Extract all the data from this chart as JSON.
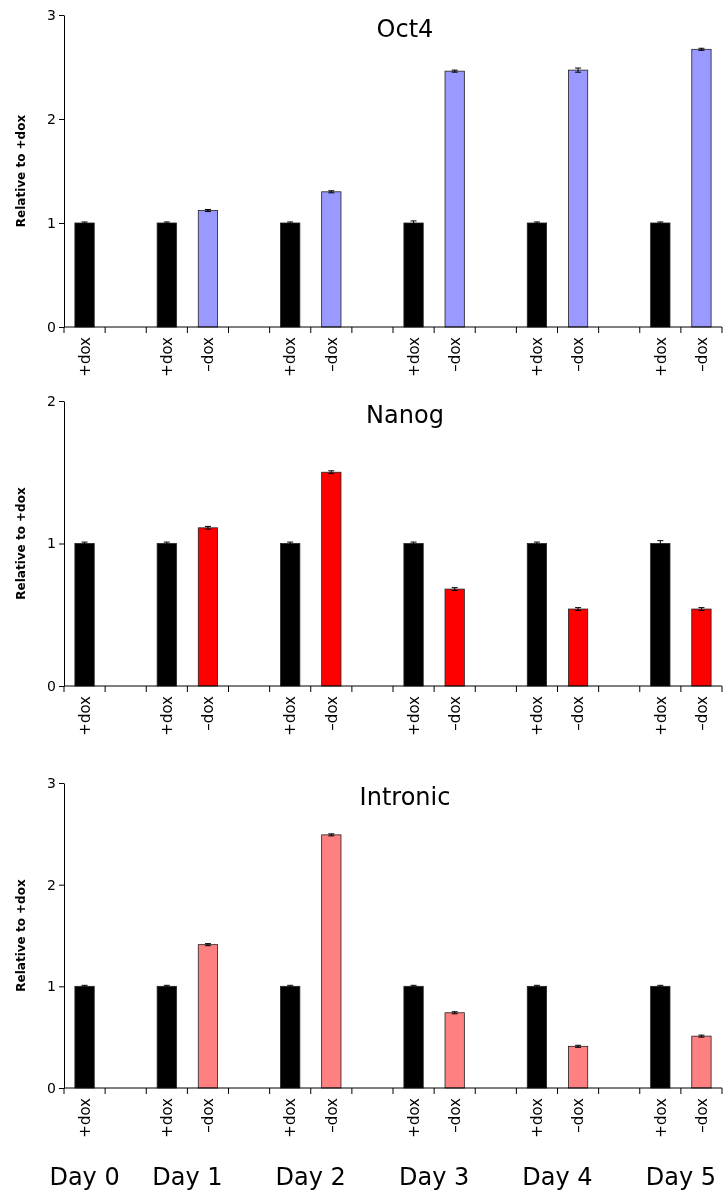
{
  "chart_data": [
    {
      "type": "bar",
      "title": "Oct4",
      "ylabel": "Relative to +dox",
      "categories": [
        "+dox",
        null,
        "+dox",
        "–dox",
        null,
        "+dox",
        "–dox",
        null,
        "+dox",
        "–dox",
        null,
        "+dox",
        "–dox",
        null,
        "+dox",
        "–dox"
      ],
      "values": [
        1,
        null,
        1,
        1.12,
        null,
        1,
        1.3,
        null,
        1,
        2.46,
        null,
        1,
        2.47,
        null,
        1,
        2.67
      ],
      "errors": [
        0.01,
        null,
        0.01,
        0.01,
        null,
        0.01,
        0.01,
        null,
        0.02,
        0.01,
        null,
        0.01,
        0.02,
        null,
        0.01,
        0.01
      ],
      "colors": [
        "#000000",
        null,
        "#000000",
        "#9999ff",
        null,
        "#000000",
        "#9999ff",
        null,
        "#000000",
        "#9999ff",
        null,
        "#000000",
        "#9999ff",
        null,
        "#000000",
        "#9999ff"
      ],
      "ylim": [
        0,
        3
      ],
      "yticks": [
        0,
        1,
        2,
        3
      ],
      "grid": false
    },
    {
      "type": "bar",
      "title": "Nanog",
      "ylabel": "Relative to +dox",
      "categories": [
        "+dox",
        null,
        "+dox",
        "–dox",
        null,
        "+dox",
        "–dox",
        null,
        "+dox",
        "–dox",
        null,
        "+dox",
        "–dox",
        null,
        "+dox",
        "–dox"
      ],
      "values": [
        1,
        null,
        1,
        1.11,
        null,
        1,
        1.5,
        null,
        1,
        0.68,
        null,
        1,
        0.54,
        null,
        1,
        0.54
      ],
      "errors": [
        0.01,
        null,
        0.01,
        0.01,
        null,
        0.01,
        0.01,
        null,
        0.01,
        0.01,
        null,
        0.01,
        0.01,
        null,
        0.02,
        0.01
      ],
      "colors": [
        "#000000",
        null,
        "#000000",
        "#ff0000",
        null,
        "#000000",
        "#ff0000",
        null,
        "#000000",
        "#ff0000",
        null,
        "#000000",
        "#ff0000",
        null,
        "#000000",
        "#ff0000"
      ],
      "ylim": [
        0,
        2
      ],
      "yticks": [
        0,
        1,
        2
      ],
      "grid": false
    },
    {
      "type": "bar",
      "title": "Intronic",
      "ylabel": "Relative to +dox",
      "categories": [
        "+dox",
        null,
        "+dox",
        "–dox",
        null,
        "+dox",
        "–dox",
        null,
        "+dox",
        "–dox",
        null,
        "+dox",
        "–dox",
        null,
        "+dox",
        "–dox"
      ],
      "values": [
        1,
        null,
        1,
        1.41,
        null,
        1,
        2.49,
        null,
        1,
        0.74,
        null,
        1,
        0.41,
        null,
        1,
        0.51
      ],
      "errors": [
        0.01,
        null,
        0.01,
        0.01,
        null,
        0.01,
        0.01,
        null,
        0.01,
        0.01,
        null,
        0.01,
        0.01,
        null,
        0.01,
        0.01
      ],
      "colors": [
        "#000000",
        null,
        "#000000",
        "#ff8080",
        null,
        "#000000",
        "#ff8080",
        null,
        "#000000",
        "#ff8080",
        null,
        "#000000",
        "#ff8080",
        null,
        "#000000",
        "#ff8080"
      ],
      "ylim": [
        0,
        3
      ],
      "yticks": [
        0,
        1,
        2,
        3
      ],
      "grid": false,
      "annotations": [
        "Day 0",
        "Day 1",
        "Day 2",
        "Day 3",
        "Day 4",
        "Day 5"
      ]
    }
  ]
}
